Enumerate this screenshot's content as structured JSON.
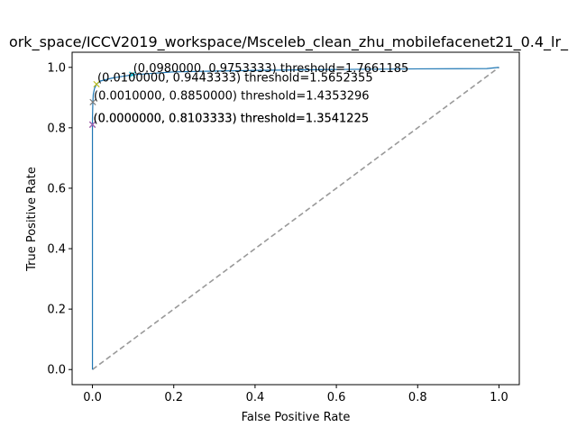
{
  "chart_data": {
    "type": "line",
    "title": "ork_space/ICCV2019_workspace/Msceleb_clean_zhu_mobilefacenet21_0.4_lr_",
    "xlabel": "False Positive Rate",
    "ylabel": "True Positive Rate",
    "xlim": [
      -0.05,
      1.05
    ],
    "ylim": [
      -0.05,
      1.05
    ],
    "xticks": [
      "0.0",
      "0.2",
      "0.4",
      "0.6",
      "0.8",
      "1.0"
    ],
    "yticks": [
      "0.0",
      "0.2",
      "0.4",
      "0.6",
      "0.8",
      "1.0"
    ],
    "grid": false,
    "series": [
      {
        "color": "#1f77b4",
        "x": [
          0.0,
          0.0,
          0.0,
          0.0,
          0.001,
          0.002,
          0.005,
          0.01,
          0.02,
          0.05,
          0.098,
          0.2,
          0.4,
          0.6,
          0.8,
          0.97,
          1.0
        ],
        "y": [
          0.0,
          0.7,
          0.8103333,
          0.83,
          0.885,
          0.91,
          0.93,
          0.9443333,
          0.955,
          0.965,
          0.9753333,
          0.985,
          0.99,
          0.993,
          0.995,
          0.996,
          1.0
        ]
      },
      {
        "color": "#999999",
        "dashed": true,
        "x": [
          0.0,
          1.0
        ],
        "y": [
          0.0,
          1.0
        ]
      }
    ],
    "markers": [
      {
        "x": 0.0,
        "y": 0.8103333,
        "color": "#d62728"
      },
      {
        "x": 0.0,
        "y": 0.8103333,
        "color": "#9467bd"
      },
      {
        "x": 0.001,
        "y": 0.885,
        "color": "#7f7f7f"
      },
      {
        "x": 0.01,
        "y": 0.9443333,
        "color": "#bcbd22"
      },
      {
        "x": 0.098,
        "y": 0.9753333,
        "color": "#17becf"
      }
    ],
    "annotations": [
      {
        "x": 0.0,
        "y": 0.8103333,
        "text": "(0.0000000, 0.8103333) threshold=1.3541225"
      },
      {
        "x": 0.0,
        "y": 0.8103333,
        "text": "(0.0000000, 0.8103333) threshold=1.3541225"
      },
      {
        "x": 0.001,
        "y": 0.885,
        "text": "(0.0010000, 0.8850000) threshold=1.4353296"
      },
      {
        "x": 0.01,
        "y": 0.9443333,
        "text": "(0.0100000, 0.9443333) threshold=1.5652355"
      },
      {
        "x": 0.098,
        "y": 0.9753333,
        "text": "(0.0980000, 0.9753333) threshold=1.7661185"
      }
    ]
  }
}
